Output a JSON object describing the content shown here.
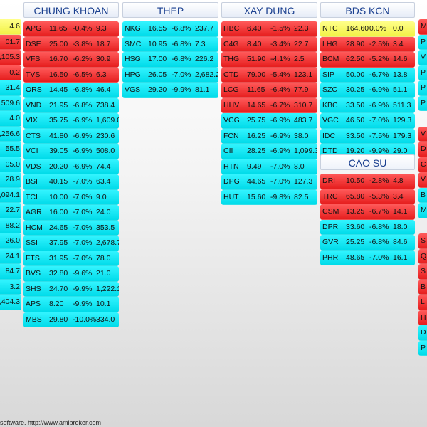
{
  "footer": {
    "text": "software. http://www.amibroker.com"
  },
  "left_partial": [
    {
      "t": "4.6",
      "c": "yellow"
    },
    {
      "t": "01.7",
      "c": "red"
    },
    {
      "t": ",105.3",
      "c": "red"
    },
    {
      "t": "0.2",
      "c": "red"
    },
    {
      "t": "31.4",
      "c": "cyan"
    },
    {
      "t": "509.6",
      "c": "cyan"
    },
    {
      "t": "4.0",
      "c": "cyan"
    },
    {
      "t": ",256.6",
      "c": "cyan"
    },
    {
      "t": "55.5",
      "c": "cyan"
    },
    {
      "t": "05.0",
      "c": "cyan"
    },
    {
      "t": "28.9",
      "c": "cyan"
    },
    {
      "t": ",094.1",
      "c": "cyan"
    },
    {
      "t": "22.7",
      "c": "cyan"
    },
    {
      "t": "88.2",
      "c": "cyan"
    },
    {
      "t": "26.0",
      "c": "cyan"
    },
    {
      "t": "24.1",
      "c": "cyan"
    },
    {
      "t": "84.7",
      "c": "cyan"
    },
    {
      "t": "3.2",
      "c": "cyan"
    },
    {
      "t": ",404.3",
      "c": "cyan"
    }
  ],
  "sectors": [
    {
      "name": "CHUNG KHOAN",
      "rows": [
        {
          "s": "APG",
          "p": "11.65",
          "ch": "-0.4%",
          "v": "9.3",
          "c": "red"
        },
        {
          "s": "DSE",
          "p": "25.00",
          "ch": "-3.8%",
          "v": "18.7",
          "c": "red"
        },
        {
          "s": "VFS",
          "p": "16.70",
          "ch": "-6.2%",
          "v": "30.9",
          "c": "red"
        },
        {
          "s": "TVS",
          "p": "16.50",
          "ch": "-6.5%",
          "v": "6.3",
          "c": "red"
        },
        {
          "s": "ORS",
          "p": "14.45",
          "ch": "-6.8%",
          "v": "46.4",
          "c": "cyan"
        },
        {
          "s": "VND",
          "p": "21.95",
          "ch": "-6.8%",
          "v": "738.4",
          "c": "cyan"
        },
        {
          "s": "VIX",
          "p": "35.75",
          "ch": "-6.9%",
          "v": "1,609.0",
          "c": "cyan"
        },
        {
          "s": "CTS",
          "p": "41.80",
          "ch": "-6.9%",
          "v": "230.6",
          "c": "cyan"
        },
        {
          "s": "VCI",
          "p": "39.05",
          "ch": "-6.9%",
          "v": "508.0",
          "c": "cyan"
        },
        {
          "s": "VDS",
          "p": "20.20",
          "ch": "-6.9%",
          "v": "74.4",
          "c": "cyan"
        },
        {
          "s": "BSI",
          "p": "40.15",
          "ch": "-7.0%",
          "v": "63.4",
          "c": "cyan"
        },
        {
          "s": "TCI",
          "p": "10.00",
          "ch": "-7.0%",
          "v": "9.0",
          "c": "cyan"
        },
        {
          "s": "AGR",
          "p": "16.00",
          "ch": "-7.0%",
          "v": "24.0",
          "c": "cyan"
        },
        {
          "s": "HCM",
          "p": "24.65",
          "ch": "-7.0%",
          "v": "353.5",
          "c": "cyan"
        },
        {
          "s": "SSI",
          "p": "37.95",
          "ch": "-7.0%",
          "v": "2,678.7",
          "c": "cyan"
        },
        {
          "s": "FTS",
          "p": "31.95",
          "ch": "-7.0%",
          "v": "78.0",
          "c": "cyan"
        },
        {
          "s": "BVS",
          "p": "32.80",
          "ch": "-9.6%",
          "v": "21.0",
          "c": "cyan"
        },
        {
          "s": "SHS",
          "p": "24.70",
          "ch": "-9.9%",
          "v": "1,222.1",
          "c": "cyan"
        },
        {
          "s": "APS",
          "p": "8.20",
          "ch": "-9.9%",
          "v": "10.1",
          "c": "cyan"
        },
        {
          "s": "MBS",
          "p": "29.80",
          "ch": "-10.0%",
          "v": "334.0",
          "c": "cyan"
        }
      ]
    },
    {
      "name": "THEP",
      "rows": [
        {
          "s": "NKG",
          "p": "16.55",
          "ch": "-6.8%",
          "v": "237.7",
          "c": "cyan"
        },
        {
          "s": "SMC",
          "p": "10.95",
          "ch": "-6.8%",
          "v": "7.3",
          "c": "cyan"
        },
        {
          "s": "HSG",
          "p": "17.00",
          "ch": "-6.8%",
          "v": "226.2",
          "c": "cyan"
        },
        {
          "s": "HPG",
          "p": "26.05",
          "ch": "-7.0%",
          "v": "2,682.2",
          "c": "cyan"
        },
        {
          "s": "VGS",
          "p": "29.20",
          "ch": "-9.9%",
          "v": "81.1",
          "c": "cyan"
        }
      ]
    },
    {
      "name": "XAY DUNG",
      "rows": [
        {
          "s": "HBC",
          "p": "6.40",
          "ch": "-1.5%",
          "v": "22.3",
          "c": "red"
        },
        {
          "s": "C4G",
          "p": "8.40",
          "ch": "-3.4%",
          "v": "22.7",
          "c": "red"
        },
        {
          "s": "THG",
          "p": "51.90",
          "ch": "-4.1%",
          "v": "2.5",
          "c": "red"
        },
        {
          "s": "CTD",
          "p": "79.00",
          "ch": "-5.4%",
          "v": "123.1",
          "c": "red"
        },
        {
          "s": "LCG",
          "p": "11.65",
          "ch": "-6.4%",
          "v": "77.9",
          "c": "red"
        },
        {
          "s": "HHV",
          "p": "14.65",
          "ch": "-6.7%",
          "v": "310.7",
          "c": "red"
        },
        {
          "s": "VCG",
          "p": "25.75",
          "ch": "-6.9%",
          "v": "483.7",
          "c": "cyan"
        },
        {
          "s": "FCN",
          "p": "16.25",
          "ch": "-6.9%",
          "v": "38.0",
          "c": "cyan"
        },
        {
          "s": "CII",
          "p": "28.25",
          "ch": "-6.9%",
          "v": "1,099.3",
          "c": "cyan"
        },
        {
          "s": "HTN",
          "p": "9.49",
          "ch": "-7.0%",
          "v": "8.0",
          "c": "cyan"
        },
        {
          "s": "DPG",
          "p": "44.65",
          "ch": "-7.0%",
          "v": "127.3",
          "c": "cyan"
        },
        {
          "s": "HUT",
          "p": "15.60",
          "ch": "-9.8%",
          "v": "82.5",
          "c": "cyan"
        }
      ]
    },
    {
      "name": "BDS KCN",
      "rows": [
        {
          "s": "NTC",
          "p": "164.60",
          "ch": "0.0%",
          "v": "0.0",
          "c": "yellow"
        },
        {
          "s": "LHG",
          "p": "28.90",
          "ch": "-2.5%",
          "v": "3.4",
          "c": "red"
        },
        {
          "s": "BCM",
          "p": "62.50",
          "ch": "-5.2%",
          "v": "14.6",
          "c": "red"
        },
        {
          "s": "SIP",
          "p": "50.00",
          "ch": "-6.7%",
          "v": "13.8",
          "c": "cyan"
        },
        {
          "s": "SZC",
          "p": "30.25",
          "ch": "-6.9%",
          "v": "51.1",
          "c": "cyan"
        },
        {
          "s": "KBC",
          "p": "33.50",
          "ch": "-6.9%",
          "v": "511.3",
          "c": "cyan"
        },
        {
          "s": "VGC",
          "p": "46.50",
          "ch": "-7.0%",
          "v": "129.3",
          "c": "cyan"
        },
        {
          "s": "IDC",
          "p": "33.50",
          "ch": "-7.5%",
          "v": "179.3",
          "c": "cyan"
        },
        {
          "s": "DTD",
          "p": "19.20",
          "ch": "-9.9%",
          "v": "29.0",
          "c": "cyan"
        }
      ]
    },
    {
      "name": "CAO SU",
      "rows": [
        {
          "s": "DRI",
          "p": "10.50",
          "ch": "-2.8%",
          "v": "4.8",
          "c": "red"
        },
        {
          "s": "TRC",
          "p": "65.80",
          "ch": "-5.3%",
          "v": "3.4",
          "c": "red"
        },
        {
          "s": "CSM",
          "p": "13.25",
          "ch": "-6.7%",
          "v": "14.1",
          "c": "red"
        },
        {
          "s": "DPR",
          "p": "33.60",
          "ch": "-6.8%",
          "v": "18.0",
          "c": "cyan"
        },
        {
          "s": "GVR",
          "p": "25.25",
          "ch": "-6.8%",
          "v": "84.6",
          "c": "cyan"
        },
        {
          "s": "PHR",
          "p": "48.65",
          "ch": "-7.0%",
          "v": "16.1",
          "c": "cyan"
        }
      ]
    }
  ],
  "right_partial": [
    {
      "t": "M",
      "c": "red"
    },
    {
      "t": "P",
      "c": "cyan"
    },
    {
      "t": "V",
      "c": "cyan"
    },
    {
      "t": "P",
      "c": "cyan"
    },
    {
      "t": "P",
      "c": "cyan"
    },
    {
      "t": "P",
      "c": "cyan"
    },
    {
      "t": "",
      "c": "none"
    },
    {
      "t": "V",
      "c": "red"
    },
    {
      "t": "D",
      "c": "red"
    },
    {
      "t": "C",
      "c": "red"
    },
    {
      "t": "V",
      "c": "red"
    },
    {
      "t": "B",
      "c": "cyan"
    },
    {
      "t": "M",
      "c": "cyan"
    },
    {
      "t": "",
      "c": "none"
    },
    {
      "t": "S",
      "c": "red"
    },
    {
      "t": "Q",
      "c": "red"
    },
    {
      "t": "S",
      "c": "red"
    },
    {
      "t": "B",
      "c": "red"
    },
    {
      "t": "L",
      "c": "red"
    },
    {
      "t": "H",
      "c": "red"
    },
    {
      "t": "D",
      "c": "cyan"
    },
    {
      "t": "P",
      "c": "cyan"
    }
  ]
}
